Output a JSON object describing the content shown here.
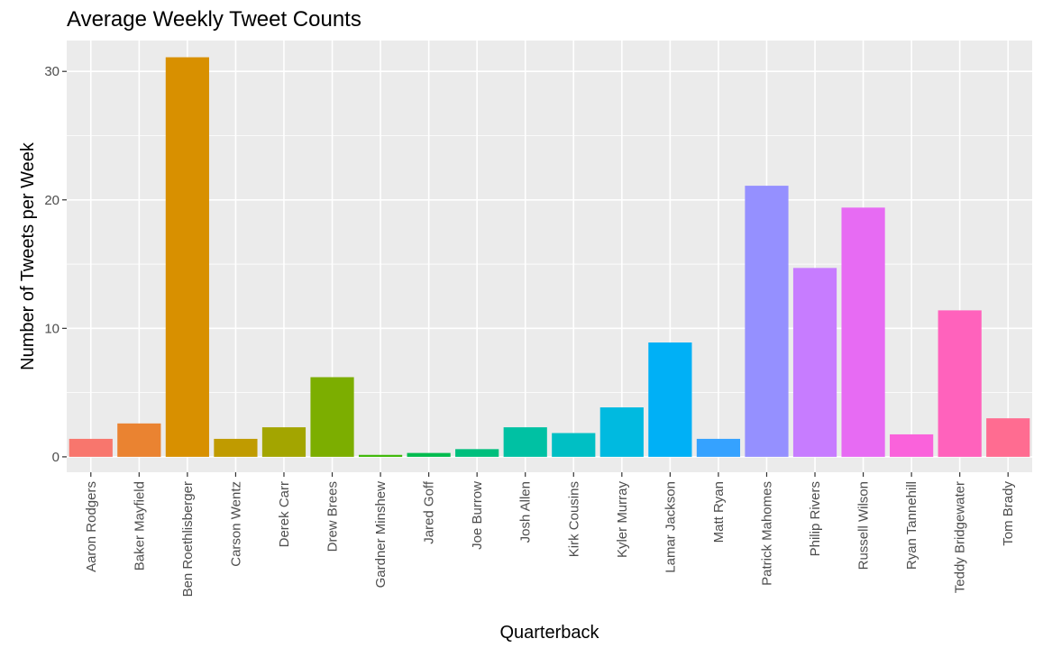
{
  "chart_data": {
    "type": "bar",
    "title": "Average Weekly Tweet Counts",
    "xlabel": "Quarterback",
    "ylabel": "Number of Tweets per Week",
    "ylim": [
      -1.2,
      32.4
    ],
    "yticks": [
      0,
      10,
      20,
      30
    ],
    "grid": true,
    "legend": "none",
    "categories": [
      "Aaron Rodgers",
      "Baker Mayfield",
      "Ben Roethlisberger",
      "Carson Wentz",
      "Derek Carr",
      "Drew Brees",
      "Gardner Minshew",
      "Jared Goff",
      "Joe Burrow",
      "Josh Allen",
      "Kirk Cousins",
      "Kyler Murray",
      "Lamar Jackson",
      "Matt Ryan",
      "Patrick Mahomes",
      "Philip Rivers",
      "Russell Wilson",
      "Ryan Tannehill",
      "Teddy Bridgewater",
      "Tom Brady"
    ],
    "values": [
      1.4,
      2.6,
      31.1,
      1.4,
      2.3,
      6.2,
      0.15,
      0.3,
      0.6,
      2.3,
      1.85,
      3.85,
      8.9,
      1.4,
      21.1,
      14.7,
      19.4,
      1.75,
      11.4,
      3.0
    ],
    "colors": [
      "#F8766D",
      "#EA8331",
      "#D89000",
      "#C09B00",
      "#A3A500",
      "#7CAE00",
      "#39B600",
      "#00BB4E",
      "#00BF7D",
      "#00C1A3",
      "#00BFC4",
      "#00BAE0",
      "#00B0F6",
      "#35A2FF",
      "#9590FF",
      "#C77CFF",
      "#E76BF3",
      "#FA62DB",
      "#FF62BC",
      "#FF6C91"
    ],
    "panel_bg": "#EBEBEB",
    "grid_color": "#FFFFFF"
  }
}
